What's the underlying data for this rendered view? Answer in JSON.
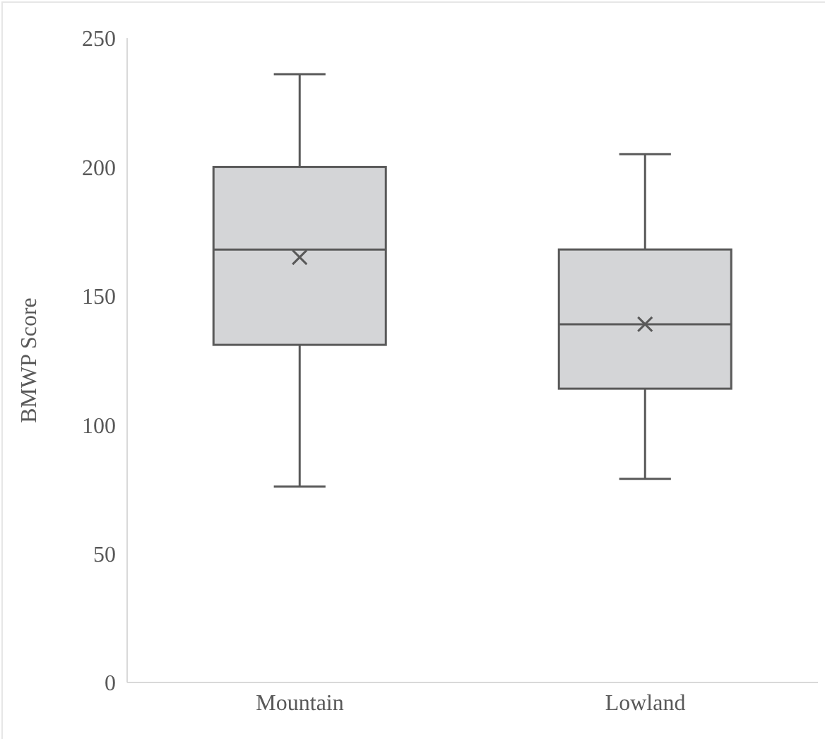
{
  "chart_data": {
    "type": "box",
    "ylabel": "BMWP Score",
    "categories": [
      "Mountain",
      "Lowland"
    ],
    "boxes": [
      {
        "low": 76,
        "q1": 131,
        "median": 168,
        "q3": 200,
        "high": 236,
        "mean": 165
      },
      {
        "low": 79,
        "q1": 114,
        "median": 139,
        "q3": 168,
        "high": 205,
        "mean": 139
      }
    ],
    "color": "#d4d5d7",
    "ylim": [
      0,
      250
    ],
    "yticks": [
      0,
      50,
      100,
      150,
      200,
      250
    ],
    "grid": false
  }
}
